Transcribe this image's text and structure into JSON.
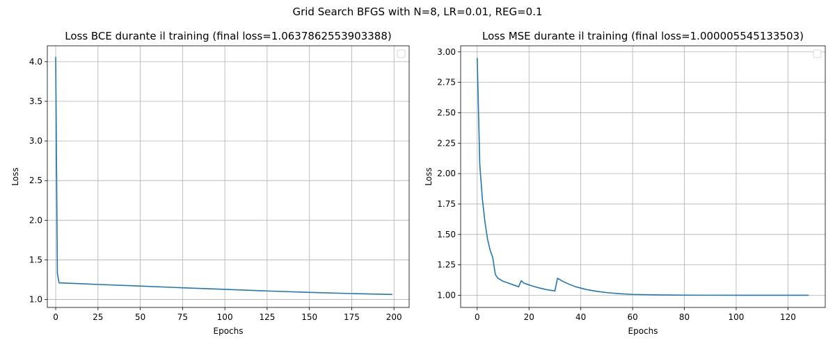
{
  "figure": {
    "suptitle": "Grid Search BFGS with N=8, LR=0.01, REG=0.1"
  },
  "chart_data": [
    {
      "type": "line",
      "title": "Loss BCE durante il training (final loss=1.0637862553903388)",
      "xlabel": "Epochs",
      "ylabel": "Loss",
      "xlim": [
        -4.95,
        208.95
      ],
      "ylim": [
        0.9,
        4.2
      ],
      "xticks": [
        0,
        25,
        50,
        75,
        100,
        125,
        150,
        175,
        200
      ],
      "xtick_labels": [
        "0",
        "25",
        "50",
        "75",
        "100",
        "125",
        "150",
        "175",
        "200"
      ],
      "yticks": [
        1.0,
        1.5,
        2.0,
        2.5,
        3.0,
        3.5,
        4.0
      ],
      "ytick_labels": [
        "1.0",
        "1.5",
        "2.0",
        "2.5",
        "3.0",
        "3.5",
        "4.0"
      ],
      "grid": true,
      "legend": "top-right",
      "series": [
        {
          "color": "#1f77b4",
          "x": [
            0,
            1,
            2,
            25,
            50,
            75,
            100,
            125,
            150,
            175,
            199
          ],
          "y": [
            4.06,
            1.33,
            1.21,
            1.19,
            1.17,
            1.148,
            1.128,
            1.108,
            1.09,
            1.075,
            1.0638
          ]
        }
      ]
    },
    {
      "type": "line",
      "title": "Loss MSE durante il training (final loss=1.000005545133503)",
      "xlabel": "Epochs",
      "ylabel": "Loss",
      "xlim": [
        -6.4,
        134.4
      ],
      "ylim": [
        0.9,
        3.05
      ],
      "xticks": [
        0,
        20,
        40,
        60,
        80,
        100,
        120
      ],
      "xtick_labels": [
        "0",
        "20",
        "40",
        "60",
        "80",
        "100",
        "120"
      ],
      "yticks": [
        1.0,
        1.25,
        1.5,
        1.75,
        2.0,
        2.25,
        2.5,
        2.75,
        3.0
      ],
      "ytick_labels": [
        "1.00",
        "1.25",
        "1.50",
        "1.75",
        "2.00",
        "2.25",
        "2.50",
        "2.75",
        "3.00"
      ],
      "grid": true,
      "legend": "top-right",
      "series": [
        {
          "color": "#1f77b4",
          "x": [
            0,
            1,
            2,
            3,
            4,
            5,
            6,
            7,
            8,
            10,
            12,
            14,
            16,
            17,
            18,
            20,
            22,
            24,
            26,
            28,
            30,
            31,
            33,
            35,
            38,
            42,
            46,
            50,
            55,
            60,
            70,
            80,
            90,
            100,
            110,
            120,
            128
          ],
          "y": [
            2.95,
            2.07,
            1.79,
            1.6,
            1.46,
            1.37,
            1.31,
            1.17,
            1.14,
            1.115,
            1.1,
            1.085,
            1.07,
            1.12,
            1.1,
            1.085,
            1.072,
            1.06,
            1.05,
            1.042,
            1.035,
            1.14,
            1.115,
            1.095,
            1.07,
            1.048,
            1.033,
            1.022,
            1.013,
            1.007,
            1.003,
            1.001,
            1.0005,
            1.0002,
            1.0001,
            1.00001,
            1.000006
          ]
        }
      ]
    }
  ]
}
